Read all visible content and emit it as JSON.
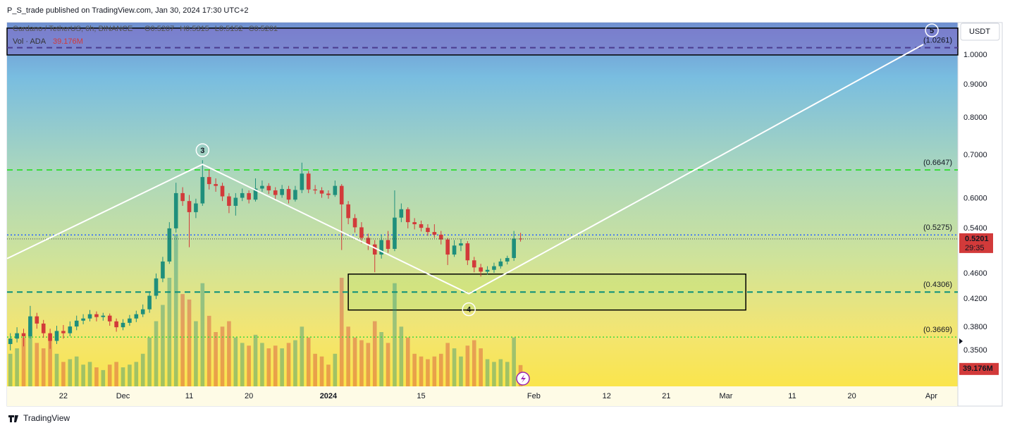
{
  "header": "P_S_trade published on TradingView.com, Jan 30, 2024 17:30 UTC+2",
  "footer": "TradingView",
  "chart_data": {
    "type": "candlestick",
    "symbol": "Cardano / TetherUS, 6h, BINANCE",
    "ohlc_labels": [
      "O0.5207",
      "H0.5315",
      "L0.5152",
      "C0.5201"
    ],
    "volume_title": "Vol · ADA",
    "volume_label": "39.176M",
    "currency": "USDT",
    "last_price_label": "0.5201",
    "countdown": "29:35",
    "log_scale": true,
    "grid": false,
    "up_color": "#1f8f7c",
    "down_color": "#d23a3a",
    "ylim": [
      0.308,
      1.122
    ],
    "yticks": [
      {
        "value": 0.35,
        "label": "0.3500"
      },
      {
        "value": 0.38,
        "label": "0.3800"
      },
      {
        "value": 0.42,
        "label": "0.4200"
      },
      {
        "value": 0.46,
        "label": "0.4600"
      },
      {
        "value": 0.54,
        "label": "0.5400"
      },
      {
        "value": 0.6,
        "label": "0.6000"
      },
      {
        "value": 0.7,
        "label": "0.7000"
      },
      {
        "value": 0.8,
        "label": "0.8000"
      },
      {
        "value": 0.9,
        "label": "0.9000"
      },
      {
        "value": 1,
        "label": "1.0000"
      }
    ],
    "xlim": [
      -8.5,
      135
    ],
    "xticks": [
      {
        "value": 0,
        "label": "22"
      },
      {
        "value": 9,
        "label": "Dec"
      },
      {
        "value": 19,
        "label": "11"
      },
      {
        "value": 28,
        "label": "20"
      },
      {
        "value": 40,
        "label": "2024"
      },
      {
        "value": 54,
        "label": "15"
      },
      {
        "value": 71,
        "label": "Feb"
      },
      {
        "value": 82,
        "label": "12"
      },
      {
        "value": 91,
        "label": "21"
      },
      {
        "value": 100,
        "label": "Mar"
      },
      {
        "value": 110,
        "label": "11"
      },
      {
        "value": 119,
        "label": "20"
      },
      {
        "value": 131,
        "label": "Apr"
      }
    ],
    "vlim": [
      0,
      500
    ],
    "x": [
      -8,
      -7,
      -6,
      -5,
      -4,
      -3,
      -2,
      -1,
      0,
      1,
      2,
      3,
      4,
      5,
      6,
      7,
      8,
      9,
      10,
      11,
      12,
      13,
      14,
      15,
      16,
      17,
      18,
      19,
      20,
      21,
      22,
      23,
      24,
      25,
      26,
      27,
      28,
      29,
      30,
      31,
      32,
      33,
      34,
      35,
      36,
      37,
      38,
      39,
      40,
      41,
      42,
      43,
      44,
      45,
      46,
      47,
      48,
      49,
      50,
      51,
      52,
      53,
      54,
      55,
      56,
      57,
      58,
      59,
      60,
      61,
      62,
      63,
      64,
      65,
      66,
      67,
      68,
      69
    ],
    "ohlc": [
      [
        0.358,
        0.372,
        0.35,
        0.365
      ],
      [
        0.365,
        0.38,
        0.36,
        0.372
      ],
      [
        0.372,
        0.378,
        0.355,
        0.368
      ],
      [
        0.368,
        0.41,
        0.365,
        0.395
      ],
      [
        0.395,
        0.4,
        0.378,
        0.385
      ],
      [
        0.385,
        0.39,
        0.366,
        0.372
      ],
      [
        0.372,
        0.378,
        0.352,
        0.362
      ],
      [
        0.362,
        0.382,
        0.358,
        0.375
      ],
      [
        0.375,
        0.383,
        0.365,
        0.372
      ],
      [
        0.372,
        0.388,
        0.368,
        0.381
      ],
      [
        0.381,
        0.396,
        0.376,
        0.389
      ],
      [
        0.389,
        0.398,
        0.384,
        0.392
      ],
      [
        0.392,
        0.404,
        0.388,
        0.398
      ],
      [
        0.398,
        0.402,
        0.388,
        0.394
      ],
      [
        0.394,
        0.4,
        0.389,
        0.396
      ],
      [
        0.396,
        0.399,
        0.382,
        0.388
      ],
      [
        0.388,
        0.392,
        0.374,
        0.38
      ],
      [
        0.38,
        0.391,
        0.376,
        0.386
      ],
      [
        0.386,
        0.397,
        0.382,
        0.392
      ],
      [
        0.392,
        0.403,
        0.387,
        0.398
      ],
      [
        0.398,
        0.412,
        0.394,
        0.405
      ],
      [
        0.405,
        0.432,
        0.4,
        0.425
      ],
      [
        0.425,
        0.46,
        0.42,
        0.452
      ],
      [
        0.452,
        0.488,
        0.446,
        0.48
      ],
      [
        0.48,
        0.552,
        0.476,
        0.54
      ],
      [
        0.54,
        0.635,
        0.532,
        0.612
      ],
      [
        0.612,
        0.625,
        0.585,
        0.595
      ],
      [
        0.595,
        0.608,
        0.505,
        0.572
      ],
      [
        0.572,
        0.6,
        0.56,
        0.59
      ],
      [
        0.59,
        0.688,
        0.585,
        0.648
      ],
      [
        0.648,
        0.665,
        0.62,
        0.632
      ],
      [
        0.632,
        0.645,
        0.615,
        0.628
      ],
      [
        0.628,
        0.635,
        0.595,
        0.605
      ],
      [
        0.605,
        0.612,
        0.57,
        0.585
      ],
      [
        0.585,
        0.612,
        0.565,
        0.602
      ],
      [
        0.602,
        0.622,
        0.595,
        0.612
      ],
      [
        0.612,
        0.618,
        0.59,
        0.598
      ],
      [
        0.598,
        0.645,
        0.594,
        0.622
      ],
      [
        0.622,
        0.64,
        0.615,
        0.628
      ],
      [
        0.628,
        0.634,
        0.61,
        0.618
      ],
      [
        0.618,
        0.625,
        0.598,
        0.608
      ],
      [
        0.608,
        0.63,
        0.602,
        0.621
      ],
      [
        0.621,
        0.628,
        0.59,
        0.598
      ],
      [
        0.598,
        0.628,
        0.594,
        0.619
      ],
      [
        0.619,
        0.682,
        0.612,
        0.656
      ],
      [
        0.656,
        0.662,
        0.612,
        0.62
      ],
      [
        0.62,
        0.63,
        0.61,
        0.618
      ],
      [
        0.618,
        0.625,
        0.602,
        0.611
      ],
      [
        0.611,
        0.618,
        0.6,
        0.608
      ],
      [
        0.608,
        0.64,
        0.604,
        0.628
      ],
      [
        0.628,
        0.632,
        0.5,
        0.588
      ],
      [
        0.588,
        0.595,
        0.548,
        0.56
      ],
      [
        0.56,
        0.568,
        0.532,
        0.542
      ],
      [
        0.542,
        0.552,
        0.512,
        0.522
      ],
      [
        0.522,
        0.53,
        0.5,
        0.51
      ],
      [
        0.51,
        0.518,
        0.462,
        0.492
      ],
      [
        0.492,
        0.528,
        0.485,
        0.518
      ],
      [
        0.518,
        0.535,
        0.495,
        0.502
      ],
      [
        0.502,
        0.618,
        0.498,
        0.561
      ],
      [
        0.561,
        0.59,
        0.552,
        0.578
      ],
      [
        0.578,
        0.582,
        0.54,
        0.552
      ],
      [
        0.552,
        0.56,
        0.538,
        0.548
      ],
      [
        0.548,
        0.555,
        0.534,
        0.541
      ],
      [
        0.541,
        0.548,
        0.526,
        0.533
      ],
      [
        0.533,
        0.548,
        0.522,
        0.528
      ],
      [
        0.528,
        0.535,
        0.51,
        0.519
      ],
      [
        0.519,
        0.522,
        0.474,
        0.492
      ],
      [
        0.492,
        0.518,
        0.488,
        0.508
      ],
      [
        0.508,
        0.52,
        0.498,
        0.512
      ],
      [
        0.512,
        0.516,
        0.474,
        0.482
      ],
      [
        0.482,
        0.488,
        0.462,
        0.47
      ],
      [
        0.47,
        0.476,
        0.455,
        0.463
      ],
      [
        0.463,
        0.472,
        0.458,
        0.466
      ],
      [
        0.466,
        0.478,
        0.461,
        0.472
      ],
      [
        0.472,
        0.485,
        0.468,
        0.48
      ],
      [
        0.48,
        0.49,
        0.475,
        0.486
      ],
      [
        0.486,
        0.535,
        0.481,
        0.5207
      ],
      [
        0.5207,
        0.5315,
        0.5152,
        0.5201
      ]
    ],
    "volume": [
      60,
      70,
      90,
      110,
      80,
      70,
      90,
      60,
      45,
      50,
      55,
      40,
      45,
      35,
      30,
      40,
      45,
      35,
      40,
      45,
      60,
      90,
      120,
      150,
      200,
      280,
      170,
      160,
      120,
      190,
      130,
      100,
      110,
      120,
      90,
      80,
      75,
      95,
      80,
      70,
      75,
      70,
      80,
      85,
      110,
      90,
      60,
      55,
      40,
      60,
      200,
      110,
      90,
      85,
      80,
      120,
      100,
      80,
      190,
      110,
      90,
      60,
      55,
      50,
      55,
      60,
      80,
      70,
      55,
      75,
      85,
      70,
      50,
      45,
      50,
      45,
      90,
      39.176
    ],
    "levels": [
      {
        "value": 1.0261,
        "label": "(1.0261)",
        "color": "#4b3c8f",
        "style": "dashed"
      },
      {
        "value": 0.6647,
        "label": "(0.6647)",
        "color": "#3ddc3d",
        "style": "dashed"
      },
      {
        "value": 0.5275,
        "label": "(0.5275)",
        "color": "#2962ff",
        "style": "dotted"
      },
      {
        "value": 0.4306,
        "label": "(0.4306)",
        "color": "#0a8f7a",
        "style": "dashed"
      },
      {
        "value": 0.3669,
        "label": "(0.3669)",
        "color": "#3fd93f",
        "style": "dotted"
      }
    ],
    "zones": [
      {
        "x": [
          -8.5,
          135
        ],
        "y": [
          1.0,
          1.1
        ],
        "color": "rgba(130,110,200,0.55)",
        "border": "#000"
      },
      {
        "x": [
          43,
          103
        ],
        "y": [
          0.404,
          0.459
        ],
        "color": "rgba(200,225,120,0.55)",
        "border": "#000"
      }
    ],
    "wave": {
      "x": [
        -8.5,
        21,
        61.2,
        129.8
      ],
      "y": [
        0.485,
        0.678,
        0.428,
        1.038
      ],
      "labels": [
        null,
        "3",
        "4",
        "5"
      ],
      "color": "#ffffff"
    }
  }
}
